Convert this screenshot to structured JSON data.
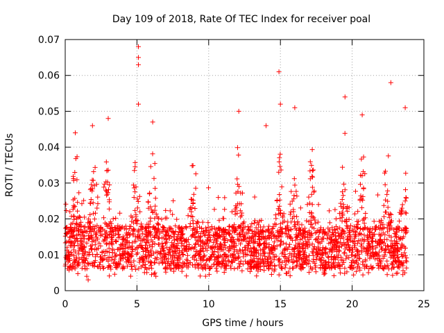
{
  "chart_data": {
    "type": "scatter",
    "title": "Day 109 of 2018, Rate Of TEC Index for receiver poal",
    "xlabel": "GPS time / hours",
    "ylabel": "ROTI / TECUs",
    "xlim": [
      0,
      25
    ],
    "ylim": [
      0,
      0.07
    ],
    "xticks": [
      "0",
      "5",
      "10",
      "15",
      "20",
      "25"
    ],
    "yticks": [
      "0",
      "0.01",
      "0.02",
      "0.03",
      "0.04",
      "0.05",
      "0.06",
      "0.07"
    ],
    "grid": true,
    "marker": "+",
    "marker_color": "#ff0000",
    "x_range_of_data": [
      0,
      23.8
    ],
    "baseline_band": [
      0.006,
      0.018
    ],
    "series": [
      {
        "name": "ROTI",
        "notable_points": [
          {
            "x": 5.1,
            "y": 0.068
          },
          {
            "x": 5.1,
            "y": 0.065
          },
          {
            "x": 5.1,
            "y": 0.063
          },
          {
            "x": 5.1,
            "y": 0.052
          },
          {
            "x": 14.9,
            "y": 0.061
          },
          {
            "x": 22.7,
            "y": 0.058
          },
          {
            "x": 19.5,
            "y": 0.054
          },
          {
            "x": 15.0,
            "y": 0.052
          },
          {
            "x": 16.0,
            "y": 0.051
          },
          {
            "x": 12.1,
            "y": 0.05
          },
          {
            "x": 23.7,
            "y": 0.051
          },
          {
            "x": 20.7,
            "y": 0.049
          },
          {
            "x": 3.0,
            "y": 0.048
          },
          {
            "x": 6.1,
            "y": 0.047
          },
          {
            "x": 14.0,
            "y": 0.046
          },
          {
            "x": 1.9,
            "y": 0.046
          },
          {
            "x": 0.7,
            "y": 0.044
          },
          {
            "x": 1.6,
            "y": 0.003
          },
          {
            "x": 1.5,
            "y": 0.004
          }
        ],
        "activity_peaks_hours": [
          0.7,
          2.0,
          2.9,
          4.9,
          6.1,
          8.9,
          12.1,
          14.9,
          15.9,
          17.2,
          19.5,
          20.7,
          22.4,
          23.7
        ]
      }
    ]
  }
}
